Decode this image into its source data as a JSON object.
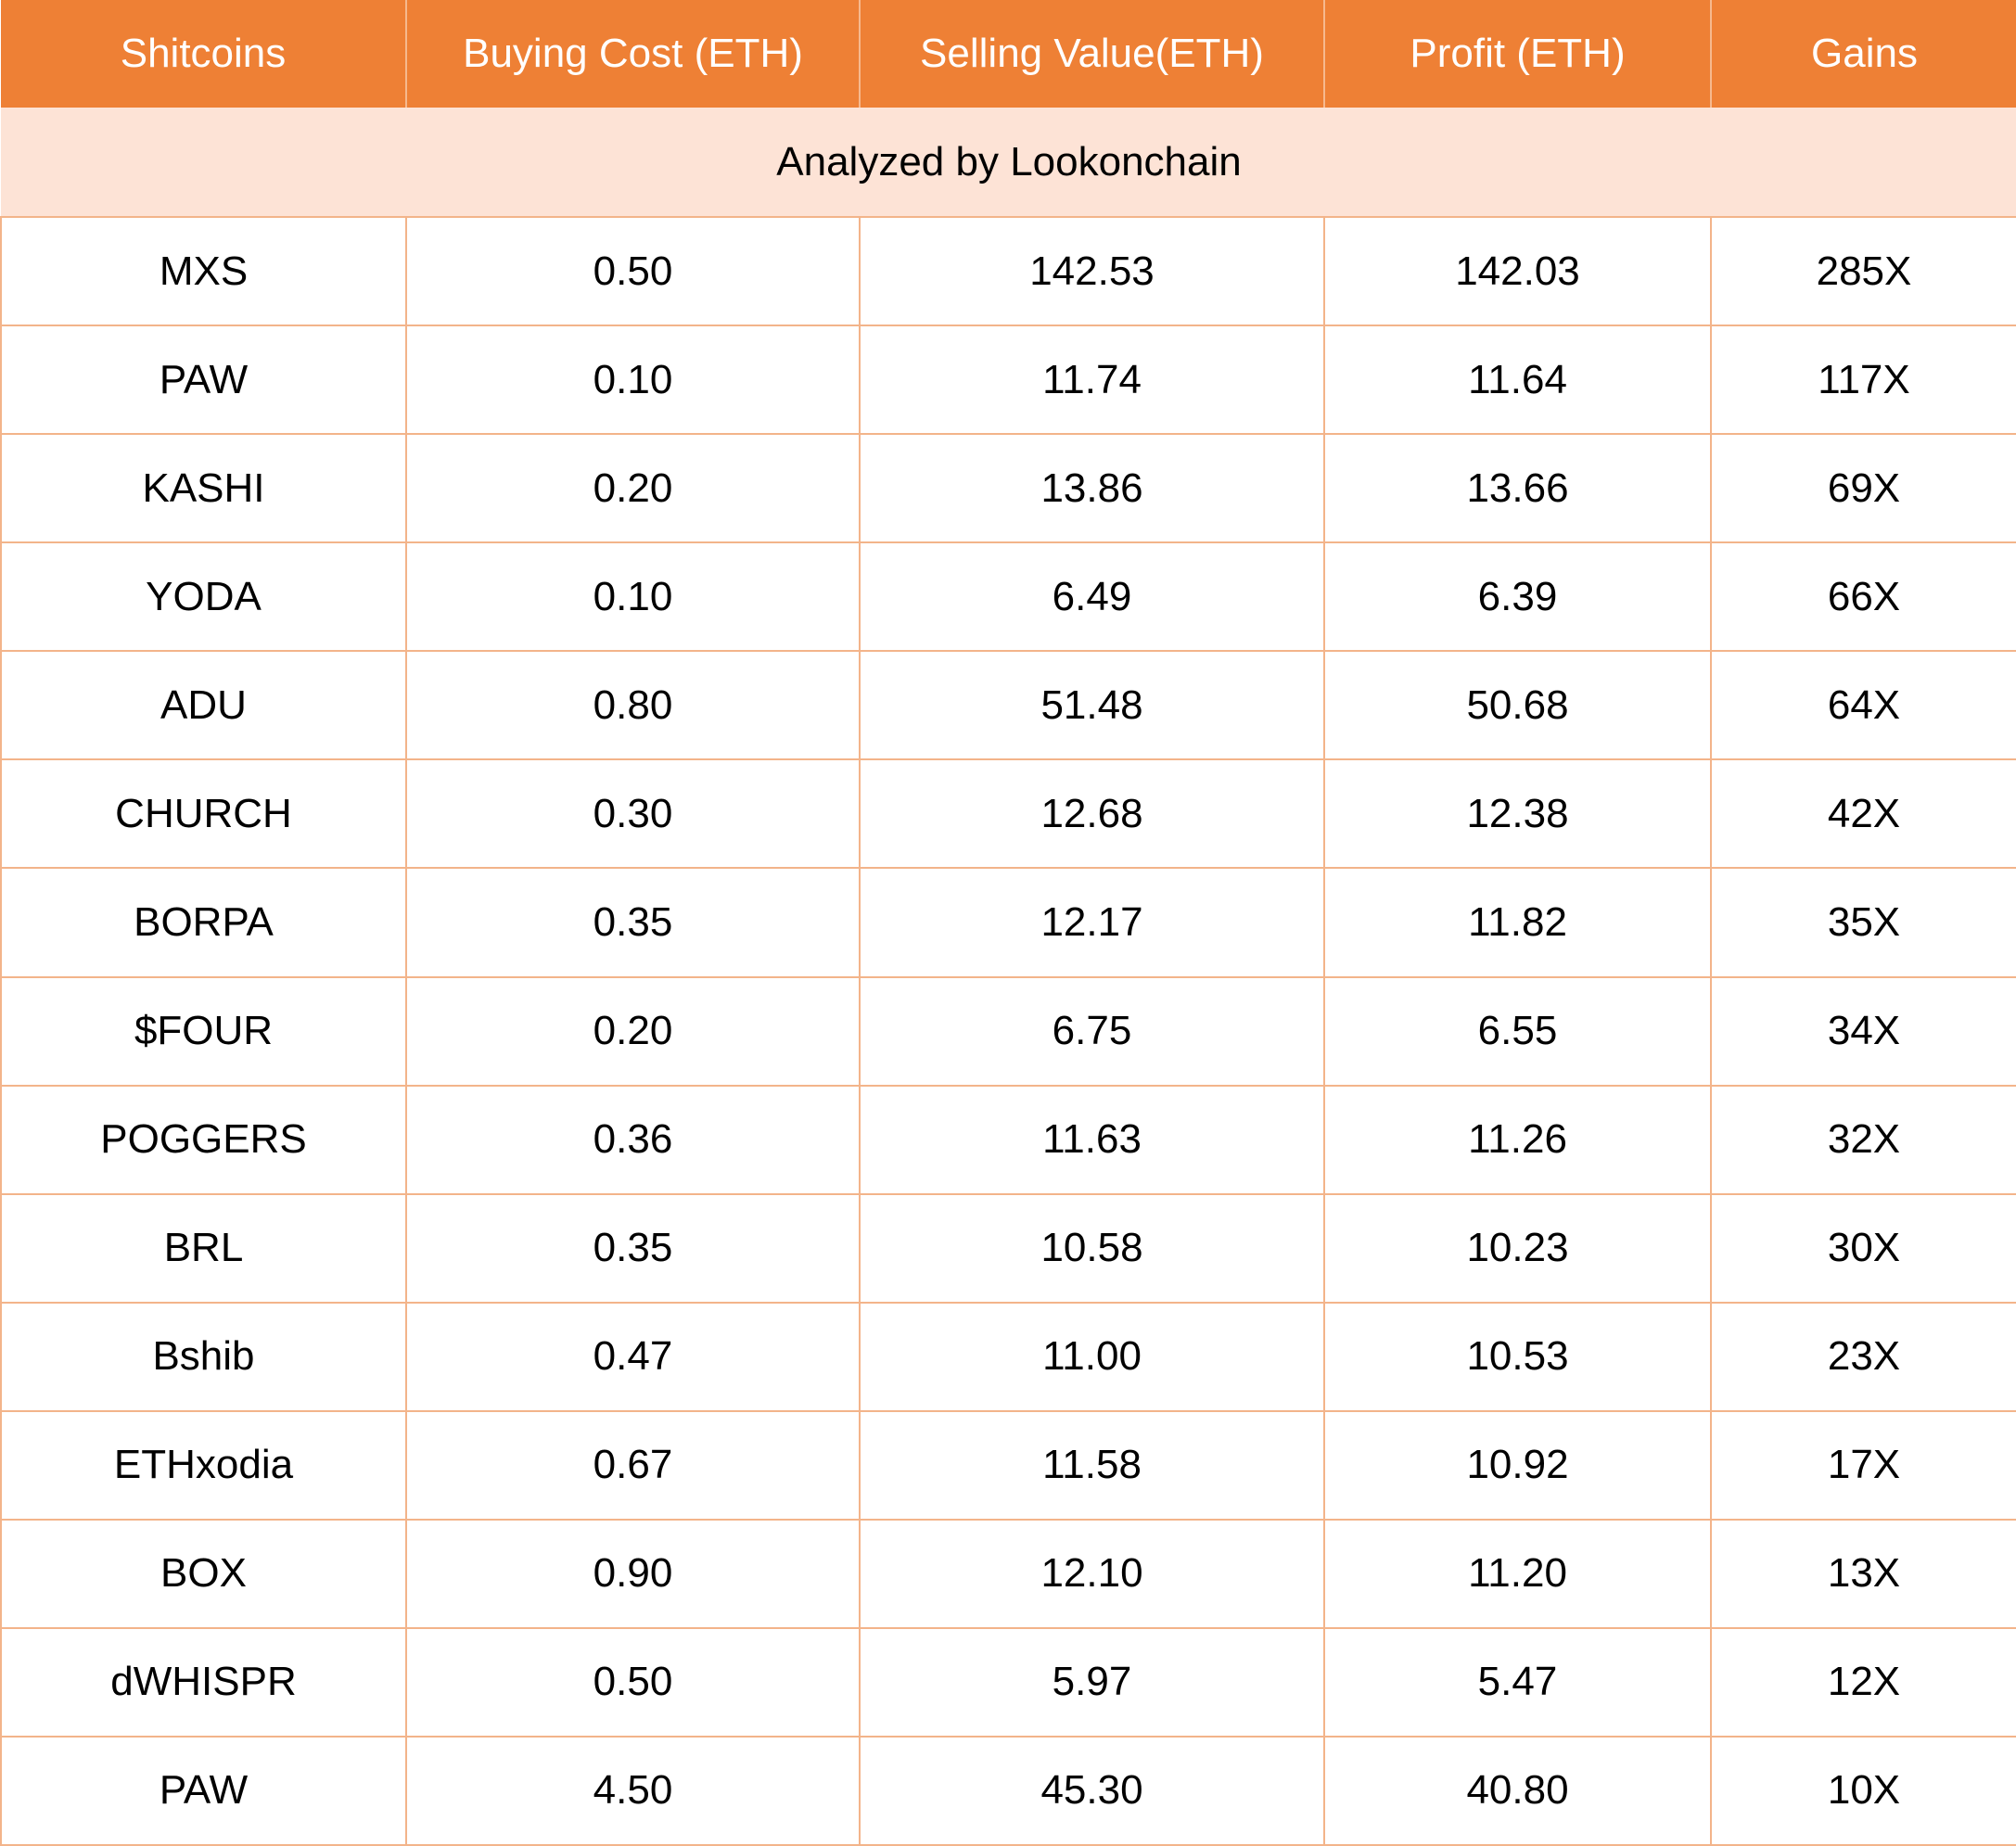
{
  "chart_data": {
    "type": "table",
    "columns": [
      "Shitcoins",
      "Buying Cost (ETH)",
      "Selling Value(ETH)",
      "Profit (ETH)",
      "Gains"
    ],
    "subtitle": "Analyzed by Lookonchain",
    "rows": [
      [
        "MXS",
        "0.50",
        "142.53",
        "142.03",
        "285X"
      ],
      [
        "PAW",
        "0.10",
        "11.74",
        "11.64",
        "117X"
      ],
      [
        "KASHI",
        "0.20",
        "13.86",
        "13.66",
        "69X"
      ],
      [
        "YODA",
        "0.10",
        "6.49",
        "6.39",
        "66X"
      ],
      [
        "ADU",
        "0.80",
        "51.48",
        "50.68",
        "64X"
      ],
      [
        "CHURCH",
        "0.30",
        "12.68",
        "12.38",
        "42X"
      ],
      [
        "BORPA",
        "0.35",
        "12.17",
        "11.82",
        "35X"
      ],
      [
        "$FOUR",
        "0.20",
        "6.75",
        "6.55",
        "34X"
      ],
      [
        "POGGERS",
        "0.36",
        "11.63",
        "11.26",
        "32X"
      ],
      [
        "BRL",
        "0.35",
        "10.58",
        "10.23",
        "30X"
      ],
      [
        "Bshib",
        "0.47",
        "11.00",
        "10.53",
        "23X"
      ],
      [
        "ETHxodia",
        "0.67",
        "11.58",
        "10.92",
        "17X"
      ],
      [
        "BOX",
        "0.90",
        "12.10",
        "11.20",
        "13X"
      ],
      [
        "dWHISPR",
        "0.50",
        "5.97",
        "5.47",
        "12X"
      ],
      [
        "PAW",
        "4.50",
        "45.30",
        "40.80",
        "10X"
      ]
    ]
  },
  "colors": {
    "header_bg": "#ee8035",
    "header_text": "#ffffff",
    "subtitle_bg": "#fde3d6",
    "grid_line": "#f3b48a"
  }
}
